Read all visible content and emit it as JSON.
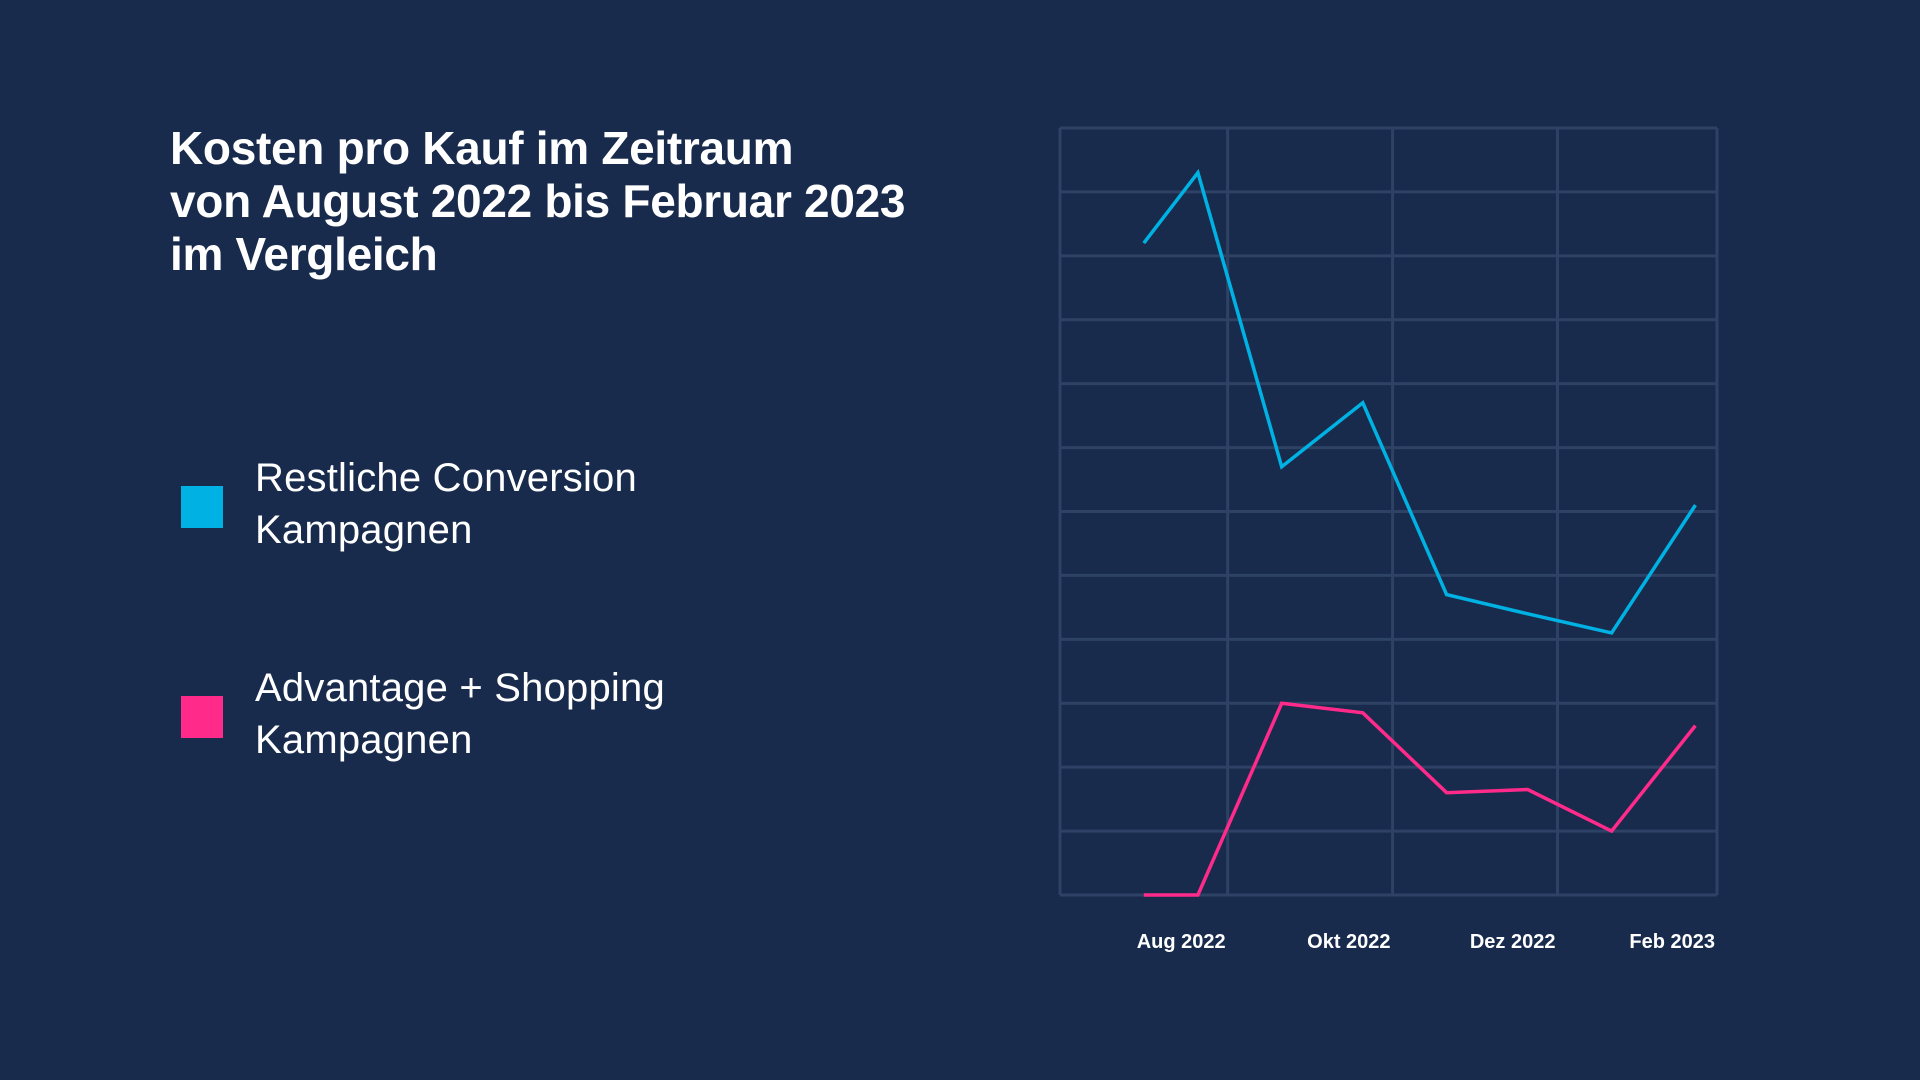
{
  "title": {
    "line1": "Kosten pro Kauf im Zeitraum",
    "line2": "von August 2022 bis Februar 2023",
    "line3": "im Vergleich"
  },
  "legend": [
    {
      "line1": "Restliche Conversion",
      "line2": "Kampagnen",
      "color": "#00b2e3"
    },
    {
      "line1": "Advantage + Shopping",
      "line2": "Kampagnen",
      "color": "#ff2a8a"
    }
  ],
  "colors": {
    "background": "#182b4d",
    "grid": "#2e4265",
    "text": "#ffffff"
  },
  "chart_data": {
    "type": "line",
    "title": "Kosten pro Kauf im Zeitraum von August 2022 bis Februar 2023 im Vergleich",
    "xlabel": "",
    "ylabel": "",
    "grid": true,
    "legend_position": "left",
    "x": [
      "2022-08-01",
      "2022-08-21",
      "2022-09-21",
      "2022-10-21",
      "2022-11-21",
      "2022-12-21",
      "2023-01-21",
      "2023-02-21"
    ],
    "xticks": [
      "Aug 2022",
      "Okt 2022",
      "Dez 2022",
      "Feb 2023"
    ],
    "ylim": [
      0,
      12
    ],
    "series": [
      {
        "name": "Restliche Conversion Kampagnen",
        "color": "#00b2e3",
        "values": [
          10.2,
          11.3,
          6.7,
          7.7,
          4.7,
          4.4,
          4.1,
          6.1
        ]
      },
      {
        "name": "Advantage + Shopping Kampagnen",
        "color": "#ff2a8a",
        "values": [
          0.0,
          0.0,
          3.0,
          2.85,
          1.6,
          1.65,
          1.0,
          2.65
        ]
      }
    ]
  }
}
